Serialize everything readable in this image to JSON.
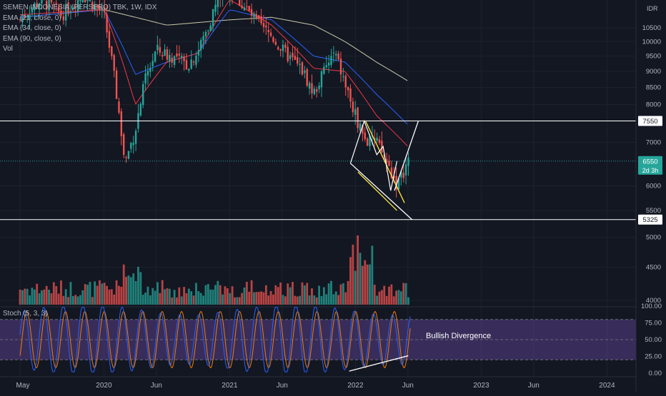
{
  "chart_title": "SEMEN INDONESIA (PERSERO) TBK, 1W, IDX",
  "indicators": [
    "EMA (21, close, 0)",
    "EMA (34, close, 0)",
    "EMA (90, close, 0)",
    "Vol"
  ],
  "currency": "IDR",
  "stoch_title": "Stoch (5, 3, 3)",
  "annotation": "Bullish Divergence",
  "colors": {
    "background": "#131722",
    "up": "#26a69a",
    "down": "#ef5350",
    "ema21": "#f23645",
    "ema34": "#2962ff",
    "ema90": "#c9c9a8",
    "stoch_k": "#2962ff",
    "stoch_d": "#f57c00",
    "stoch_band": "#7e57c2",
    "current_price": "#26a69a"
  },
  "price_axis": {
    "ticks": [
      "10500",
      "10000",
      "9500",
      "9000",
      "8500",
      "8000",
      "7000",
      "6000",
      "5500",
      "5000",
      "4500",
      "4000"
    ]
  },
  "stoch_axis": {
    "ticks": [
      "100.00",
      "75.00",
      "50.00",
      "25.00",
      "0.00"
    ]
  },
  "time_axis": {
    "ticks": [
      "May",
      "2020",
      "Jun",
      "2021",
      "Jun",
      "2022",
      "Jun",
      "2023",
      "Jun",
      "2024"
    ]
  },
  "levels": {
    "resistance": {
      "value": 7550,
      "label": "7550"
    },
    "support": {
      "value": 5325,
      "label": "5325"
    },
    "current": {
      "value": 6550,
      "label": "6550",
      "countdown": "2d 3h"
    }
  },
  "chart_data": {
    "type": "candlestick",
    "title": "SEMEN INDONESIA (PERSERO) TBK, 1W, IDX",
    "interval": "1W",
    "y_scale": "log",
    "price_range": [
      4000,
      11000
    ],
    "price_waypoints": [
      [
        "2019-05",
        10800
      ],
      [
        "2019-07",
        11600
      ],
      [
        "2019-09",
        11000
      ],
      [
        "2019-11",
        11800
      ],
      [
        "2020-01",
        11000
      ],
      [
        "2020-03",
        6500
      ],
      [
        "2020-04",
        7300
      ],
      [
        "2020-05",
        8800
      ],
      [
        "2020-06",
        9700
      ],
      [
        "2020-08",
        9400
      ],
      [
        "2020-09",
        9200
      ],
      [
        "2020-10",
        9700
      ],
      [
        "2020-11",
        10600
      ],
      [
        "2020-12",
        11800
      ],
      [
        "2021-01",
        12000
      ],
      [
        "2021-02",
        11500
      ],
      [
        "2021-03",
        11000
      ],
      [
        "2021-04",
        10500
      ],
      [
        "2021-05",
        10200
      ],
      [
        "2021-06",
        9700
      ],
      [
        "2021-08",
        9000
      ],
      [
        "2021-09",
        8300
      ],
      [
        "2021-10",
        9000
      ],
      [
        "2021-11",
        9600
      ],
      [
        "2021-12",
        8600
      ],
      [
        "2022-01",
        7700
      ],
      [
        "2022-02",
        7000
      ],
      [
        "2022-03",
        7000
      ],
      [
        "2022-04",
        6500
      ],
      [
        "2022-05",
        6000
      ],
      [
        "2022-06",
        6550
      ]
    ],
    "ema_trend": {
      "EMA 21": [
        [
          "2019-05",
          11000
        ],
        [
          "2020-01",
          11200
        ],
        [
          "2020-04",
          8000
        ],
        [
          "2020-07",
          9300
        ],
        [
          "2020-10",
          9600
        ],
        [
          "2021-01",
          11600
        ],
        [
          "2021-05",
          10600
        ],
        [
          "2021-09",
          9100
        ],
        [
          "2021-12",
          9000
        ],
        [
          "2022-03",
          7700
        ],
        [
          "2022-06",
          6900
        ]
      ],
      "EMA 34": [
        [
          "2019-05",
          10900
        ],
        [
          "2020-01",
          11200
        ],
        [
          "2020-04",
          8900
        ],
        [
          "2020-07",
          9300
        ],
        [
          "2020-10",
          9600
        ],
        [
          "2021-01",
          11200
        ],
        [
          "2021-05",
          10800
        ],
        [
          "2021-09",
          9500
        ],
        [
          "2021-12",
          9300
        ],
        [
          "2022-03",
          8300
        ],
        [
          "2022-06",
          7450
        ]
      ],
      "EMA 90": [
        [
          "2019-05",
          10900
        ],
        [
          "2020-01",
          11200
        ],
        [
          "2020-04",
          10900
        ],
        [
          "2020-07",
          10600
        ],
        [
          "2020-10",
          10700
        ],
        [
          "2021-01",
          10800
        ],
        [
          "2021-05",
          10900
        ],
        [
          "2021-09",
          10600
        ],
        [
          "2021-12",
          10000
        ],
        [
          "2022-03",
          9300
        ],
        [
          "2022-06",
          8700
        ]
      ]
    },
    "horizontal_levels": [
      7550,
      5325
    ],
    "current_price": 6550,
    "annotation": "Bullish Divergence",
    "oscillator": {
      "name": "Stoch (5, 3, 3)",
      "range": [
        0,
        100
      ],
      "band": [
        20,
        80
      ]
    }
  }
}
